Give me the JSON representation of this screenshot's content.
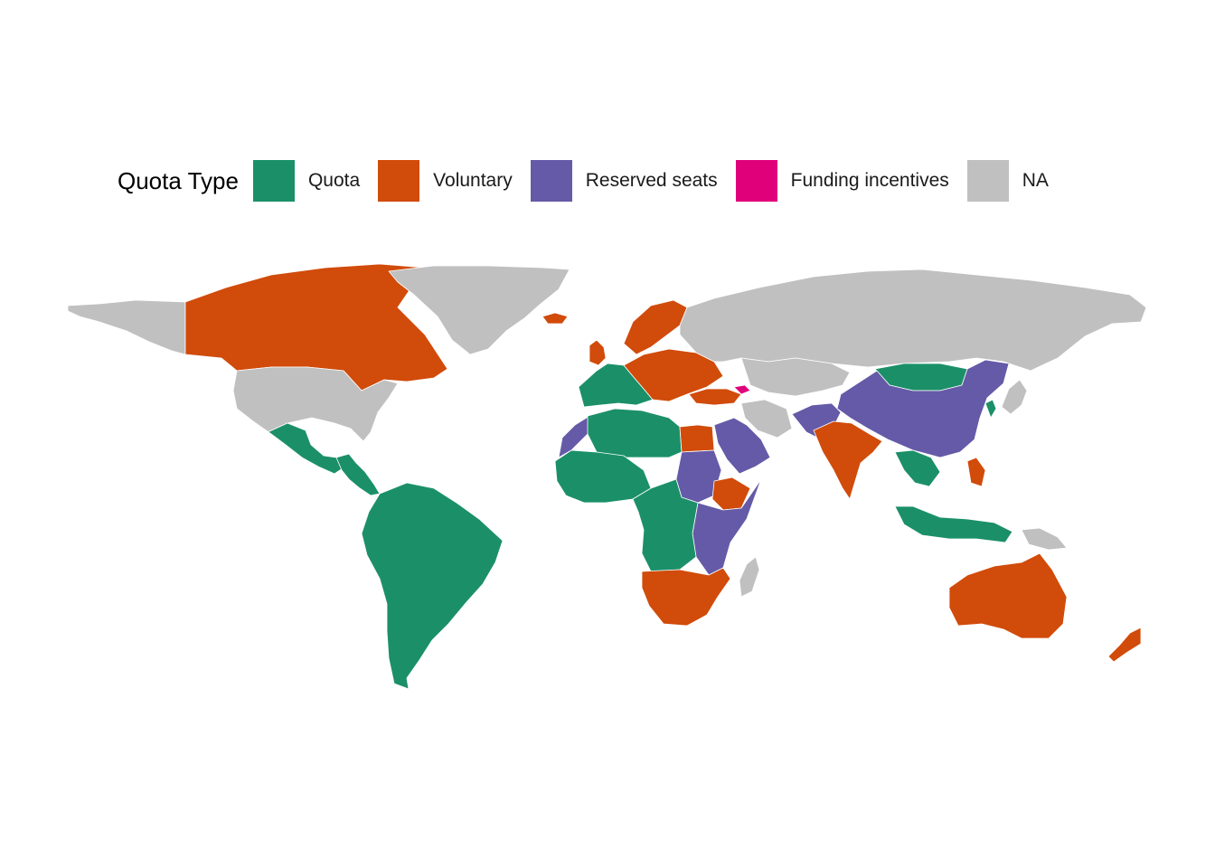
{
  "legend": {
    "title": "Quota Type",
    "items": [
      {
        "key": "quota",
        "label": "Quota",
        "color": "#1b9068"
      },
      {
        "key": "voluntary",
        "label": "Voluntary",
        "color": "#d14b0a"
      },
      {
        "key": "reserved",
        "label": "Reserved seats",
        "color": "#655aa7"
      },
      {
        "key": "funding",
        "label": "Funding incentives",
        "color": "#e0007a"
      },
      {
        "key": "na",
        "label": "NA",
        "color": "#c0c0c0"
      }
    ]
  },
  "regions": [
    {
      "name": "Canada",
      "category": "voluntary"
    },
    {
      "name": "Greenland",
      "category": "na"
    },
    {
      "name": "Alaska",
      "category": "na"
    },
    {
      "name": "United States",
      "category": "na"
    },
    {
      "name": "Mexico",
      "category": "quota"
    },
    {
      "name": "Central America",
      "category": "quota"
    },
    {
      "name": "South America",
      "category": "quota"
    },
    {
      "name": "Iceland",
      "category": "voluntary"
    },
    {
      "name": "United Kingdom",
      "category": "voluntary"
    },
    {
      "name": "Scandinavia",
      "category": "voluntary"
    },
    {
      "name": "Western Europe",
      "category": "quota"
    },
    {
      "name": "Central Europe",
      "category": "voluntary"
    },
    {
      "name": "Turkey",
      "category": "voluntary"
    },
    {
      "name": "Georgia",
      "category": "funding"
    },
    {
      "name": "Russia",
      "category": "na"
    },
    {
      "name": "Kazakhstan",
      "category": "na"
    },
    {
      "name": "Mongolia",
      "category": "quota"
    },
    {
      "name": "China",
      "category": "reserved"
    },
    {
      "name": "India",
      "category": "voluntary"
    },
    {
      "name": "Afghanistan-Pakistan",
      "category": "reserved"
    },
    {
      "name": "Iran",
      "category": "na"
    },
    {
      "name": "Arabian Peninsula",
      "category": "reserved"
    },
    {
      "name": "Egypt",
      "category": "voluntary"
    },
    {
      "name": "North Africa",
      "category": "quota"
    },
    {
      "name": "Morocco",
      "category": "reserved"
    },
    {
      "name": "West Africa",
      "category": "quota"
    },
    {
      "name": "Sudan",
      "category": "reserved"
    },
    {
      "name": "Ethiopia",
      "category": "voluntary"
    },
    {
      "name": "East Africa",
      "category": "reserved"
    },
    {
      "name": "Central Africa",
      "category": "quota"
    },
    {
      "name": "Southern Africa",
      "category": "voluntary"
    },
    {
      "name": "Madagascar",
      "category": "na"
    },
    {
      "name": "Southeast Asia",
      "category": "quota"
    },
    {
      "name": "Philippines",
      "category": "voluntary"
    },
    {
      "name": "Indonesia",
      "category": "quota"
    },
    {
      "name": "Papua New Guinea",
      "category": "na"
    },
    {
      "name": "Japan",
      "category": "na"
    },
    {
      "name": "Korea",
      "category": "quota"
    },
    {
      "name": "Australia",
      "category": "voluntary"
    },
    {
      "name": "New Zealand",
      "category": "voluntary"
    }
  ]
}
